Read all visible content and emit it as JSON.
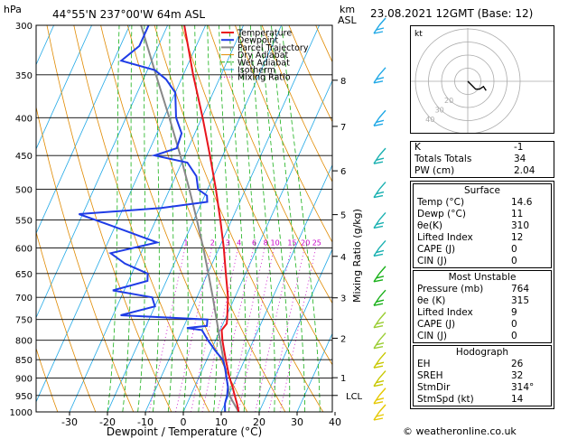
{
  "header": {
    "location": "44°55'N  237°00'W  64m  ASL",
    "datetime": "23.08.2021  12GMT  (Base: 12)",
    "hpa_label": "hPa",
    "km_label": "km",
    "asl_label": "ASL"
  },
  "legend": [
    {
      "label": "Temperature",
      "color": "#e8141c"
    },
    {
      "label": "Dewpoint",
      "color": "#1f3ce6"
    },
    {
      "label": "Parcel Trajectory",
      "color": "#888888"
    },
    {
      "label": "Dry Adiabat",
      "color": "#e08a00"
    },
    {
      "label": "Wet Adiabat",
      "color": "#18b018"
    },
    {
      "label": "Isotherm",
      "color": "#1fa8e6"
    },
    {
      "label": "Mixing Ratio",
      "color": "#c800c8"
    }
  ],
  "chart_data": {
    "type": "skew-t",
    "xlabel": "Dewpoint / Temperature (°C)",
    "ylabel_right": "Mixing Ratio (g/kg)",
    "pressure_levels": [
      300,
      350,
      400,
      450,
      500,
      550,
      600,
      650,
      700,
      750,
      800,
      850,
      900,
      950,
      1000
    ],
    "x_ticks": [
      -30,
      -20,
      -10,
      0,
      10,
      20,
      30,
      40
    ],
    "km_ticks": [
      {
        "km": "8",
        "p": 356
      },
      {
        "km": "7",
        "p": 411
      },
      {
        "km": "6",
        "p": 472
      },
      {
        "km": "5",
        "p": 541
      },
      {
        "km": "4",
        "p": 616
      },
      {
        "km": "3",
        "p": 701
      },
      {
        "km": "2",
        "p": 795
      },
      {
        "km": "1",
        "p": 899
      }
    ],
    "lcl_label": "LCL",
    "lcl_pressure": 950,
    "mixing_ratio_labels": [
      "1",
      "2",
      "3",
      "4",
      "6",
      "8",
      "10",
      "15",
      "20",
      "25"
    ],
    "temperature": [
      {
        "p": 1000,
        "t": 14.6
      },
      {
        "p": 975,
        "t": 13.2
      },
      {
        "p": 950,
        "t": 11.6
      },
      {
        "p": 925,
        "t": 10.0
      },
      {
        "p": 900,
        "t": 8.2
      },
      {
        "p": 875,
        "t": 6.6
      },
      {
        "p": 850,
        "t": 5.0
      },
      {
        "p": 825,
        "t": 3.4
      },
      {
        "p": 800,
        "t": 1.8
      },
      {
        "p": 775,
        "t": 0.4
      },
      {
        "p": 760,
        "t": 1.0
      },
      {
        "p": 750,
        "t": 0.6
      },
      {
        "p": 700,
        "t": -1.8
      },
      {
        "p": 650,
        "t": -5.2
      },
      {
        "p": 600,
        "t": -8.8
      },
      {
        "p": 550,
        "t": -13.0
      },
      {
        "p": 500,
        "t": -17.8
      },
      {
        "p": 450,
        "t": -23.4
      },
      {
        "p": 400,
        "t": -29.8
      },
      {
        "p": 350,
        "t": -37.4
      },
      {
        "p": 300,
        "t": -45.6
      }
    ],
    "dewpoint": [
      {
        "p": 1000,
        "t": 11.0
      },
      {
        "p": 975,
        "t": 10.0
      },
      {
        "p": 950,
        "t": 9.6
      },
      {
        "p": 925,
        "t": 8.8
      },
      {
        "p": 900,
        "t": 7.4
      },
      {
        "p": 875,
        "t": 6.0
      },
      {
        "p": 850,
        "t": 4.2
      },
      {
        "p": 825,
        "t": 1.0
      },
      {
        "p": 800,
        "t": -2.0
      },
      {
        "p": 775,
        "t": -4.8
      },
      {
        "p": 770,
        "t": -9.0
      },
      {
        "p": 765,
        "t": -4.0
      },
      {
        "p": 750,
        "t": -4.6
      },
      {
        "p": 740,
        "t": -28.0
      },
      {
        "p": 720,
        "t": -20.0
      },
      {
        "p": 700,
        "t": -21.8
      },
      {
        "p": 685,
        "t": -33.0
      },
      {
        "p": 665,
        "t": -25.0
      },
      {
        "p": 650,
        "t": -25.8
      },
      {
        "p": 630,
        "t": -33.0
      },
      {
        "p": 610,
        "t": -38.0
      },
      {
        "p": 590,
        "t": -27.0
      },
      {
        "p": 560,
        "t": -41.0
      },
      {
        "p": 540,
        "t": -51.0
      },
      {
        "p": 530,
        "t": -30.0
      },
      {
        "p": 520,
        "t": -18.6
      },
      {
        "p": 510,
        "t": -19.4
      },
      {
        "p": 500,
        "t": -22.5
      },
      {
        "p": 480,
        "t": -24.5
      },
      {
        "p": 460,
        "t": -28.5
      },
      {
        "p": 450,
        "t": -38.0
      },
      {
        "p": 440,
        "t": -33.0
      },
      {
        "p": 420,
        "t": -33.5
      },
      {
        "p": 400,
        "t": -36.8
      },
      {
        "p": 370,
        "t": -40.0
      },
      {
        "p": 355,
        "t": -44.0
      },
      {
        "p": 345,
        "t": -48.0
      },
      {
        "p": 335,
        "t": -58.0
      },
      {
        "p": 320,
        "t": -55.0
      },
      {
        "p": 300,
        "t": -55.0
      }
    ],
    "parcel": [
      {
        "p": 1000,
        "t": 14.6
      },
      {
        "p": 950,
        "t": 10.2
      },
      {
        "p": 900,
        "t": 7.4
      },
      {
        "p": 850,
        "t": 4.4
      },
      {
        "p": 800,
        "t": 1.2
      },
      {
        "p": 750,
        "t": -2.2
      },
      {
        "p": 700,
        "t": -5.8
      },
      {
        "p": 650,
        "t": -9.8
      },
      {
        "p": 600,
        "t": -14.2
      },
      {
        "p": 550,
        "t": -19.2
      },
      {
        "p": 500,
        "t": -24.8
      },
      {
        "p": 450,
        "t": -31.2
      },
      {
        "p": 400,
        "t": -38.6
      },
      {
        "p": 350,
        "t": -47.2
      },
      {
        "p": 300,
        "t": -57.0
      }
    ],
    "wind_barbs": [
      {
        "p": 300,
        "color": "#1fa8e6"
      },
      {
        "p": 350,
        "color": "#1fa8e6"
      },
      {
        "p": 400,
        "color": "#1fa8e6"
      },
      {
        "p": 450,
        "color": "#18b0b0"
      },
      {
        "p": 500,
        "color": "#18b0b0"
      },
      {
        "p": 550,
        "color": "#18b0b0"
      },
      {
        "p": 600,
        "color": "#18b0b0"
      },
      {
        "p": 650,
        "color": "#18b018"
      },
      {
        "p": 700,
        "color": "#18b018"
      },
      {
        "p": 750,
        "color": "#9acd32"
      },
      {
        "p": 800,
        "color": "#9acd32"
      },
      {
        "p": 850,
        "color": "#c8c800"
      },
      {
        "p": 900,
        "color": "#c8c800"
      },
      {
        "p": 950,
        "color": "#e6c800"
      },
      {
        "p": 1000,
        "color": "#e6c800"
      }
    ]
  },
  "hodograph": {
    "label": "kt",
    "ring_labels": [
      "40",
      "30",
      "20"
    ],
    "trace": [
      [
        0,
        0
      ],
      [
        3,
        -3
      ],
      [
        6,
        -6
      ],
      [
        9,
        -6
      ],
      [
        12,
        -4
      ],
      [
        14,
        -7
      ]
    ]
  },
  "indices": {
    "rows": [
      {
        "label": "K",
        "value": "-1"
      },
      {
        "label": "Totals Totals",
        "value": "34"
      },
      {
        "label": "PW (cm)",
        "value": "2.04"
      }
    ]
  },
  "surface": {
    "title": "Surface",
    "rows": [
      {
        "label": "Temp (°C)",
        "value": "14.6"
      },
      {
        "label": "Dewp (°C)",
        "value": "11"
      },
      {
        "label": "θe(K)",
        "value": "310"
      },
      {
        "label": "Lifted Index",
        "value": "12"
      },
      {
        "label": "CAPE (J)",
        "value": "0"
      },
      {
        "label": "CIN (J)",
        "value": "0"
      }
    ]
  },
  "most_unstable": {
    "title": "Most Unstable",
    "rows": [
      {
        "label": "Pressure (mb)",
        "value": "764"
      },
      {
        "label": "θe (K)",
        "value": "315"
      },
      {
        "label": "Lifted Index",
        "value": "9"
      },
      {
        "label": "CAPE (J)",
        "value": "0"
      },
      {
        "label": "CIN (J)",
        "value": "0"
      }
    ]
  },
  "hodograph_table": {
    "title": "Hodograph",
    "rows": [
      {
        "label": "EH",
        "value": "26"
      },
      {
        "label": "SREH",
        "value": "32"
      },
      {
        "label": "StmDir",
        "value": "314°"
      },
      {
        "label": "StmSpd (kt)",
        "value": "14"
      }
    ]
  },
  "credit": "© weatheronline.co.uk"
}
